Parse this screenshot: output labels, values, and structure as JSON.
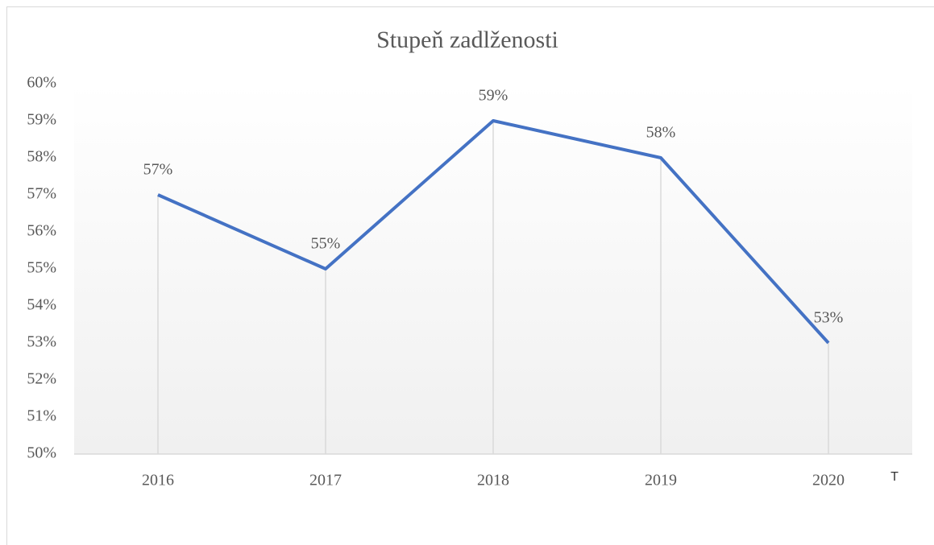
{
  "chart_data": {
    "type": "line",
    "title": "Stupeň zadlženosti",
    "xlabel": "T",
    "categories": [
      "2016",
      "2017",
      "2018",
      "2019",
      "2020"
    ],
    "series": [
      {
        "name": "Stupeň zadlženosti",
        "color": "#4472c4",
        "values": [
          57,
          55,
          59,
          58,
          53
        ],
        "value_labels": [
          "57%",
          "55%",
          "59%",
          "58%",
          "53%"
        ]
      }
    ],
    "ylim": [
      50,
      60
    ],
    "yticks": [
      {
        "value": 50,
        "label": "50%"
      },
      {
        "value": 51,
        "label": "51%"
      },
      {
        "value": 52,
        "label": "52%"
      },
      {
        "value": 53,
        "label": "53%"
      },
      {
        "value": 54,
        "label": "54%"
      },
      {
        "value": 55,
        "label": "55%"
      },
      {
        "value": 56,
        "label": "56%"
      },
      {
        "value": 57,
        "label": "57%"
      },
      {
        "value": 58,
        "label": "58%"
      },
      {
        "value": 59,
        "label": "59%"
      },
      {
        "value": 60,
        "label": "60%"
      }
    ],
    "drop_lines": true,
    "legend": false
  }
}
